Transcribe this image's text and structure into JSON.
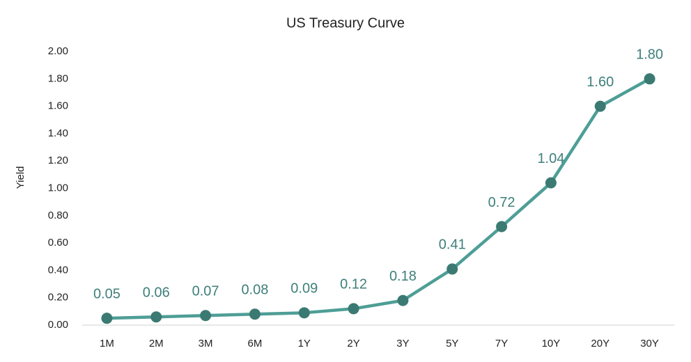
{
  "chart_data": {
    "type": "line",
    "title": "US Treasury Curve",
    "y_label": "Yield",
    "categories": [
      "1M",
      "2M",
      "3M",
      "6M",
      "1Y",
      "2Y",
      "3Y",
      "5Y",
      "7Y",
      "10Y",
      "20Y",
      "30Y"
    ],
    "series": [
      {
        "name": "Yield",
        "color": "#4e9e96",
        "marker_color": "#3b7a72",
        "label_color": "#3d7f7a",
        "values": [
          0.05,
          0.06,
          0.07,
          0.08,
          0.09,
          0.12,
          0.18,
          0.41,
          0.72,
          1.04,
          1.6,
          1.8
        ],
        "value_labels": [
          "0.05",
          "0.06",
          "0.07",
          "0.08",
          "0.09",
          "0.12",
          "0.18",
          "0.41",
          "0.72",
          "1.04",
          "1.60",
          "1.80"
        ]
      }
    ],
    "ylim": [
      0,
      2
    ],
    "yticks": [
      {
        "value": 0,
        "label": "0.00"
      },
      {
        "value": 0.2,
        "label": "0.20"
      },
      {
        "value": 0.4,
        "label": "0.40"
      },
      {
        "value": 0.6,
        "label": "0.60"
      },
      {
        "value": 0.8,
        "label": "0.80"
      },
      {
        "value": 1,
        "label": "1.00"
      },
      {
        "value": 1.2,
        "label": "1.20"
      },
      {
        "value": 1.4,
        "label": "1.40"
      },
      {
        "value": 1.6,
        "label": "1.60"
      },
      {
        "value": 1.8,
        "label": "1.80"
      },
      {
        "value": 2,
        "label": "2.00"
      }
    ],
    "grid": false,
    "legend": false
  }
}
